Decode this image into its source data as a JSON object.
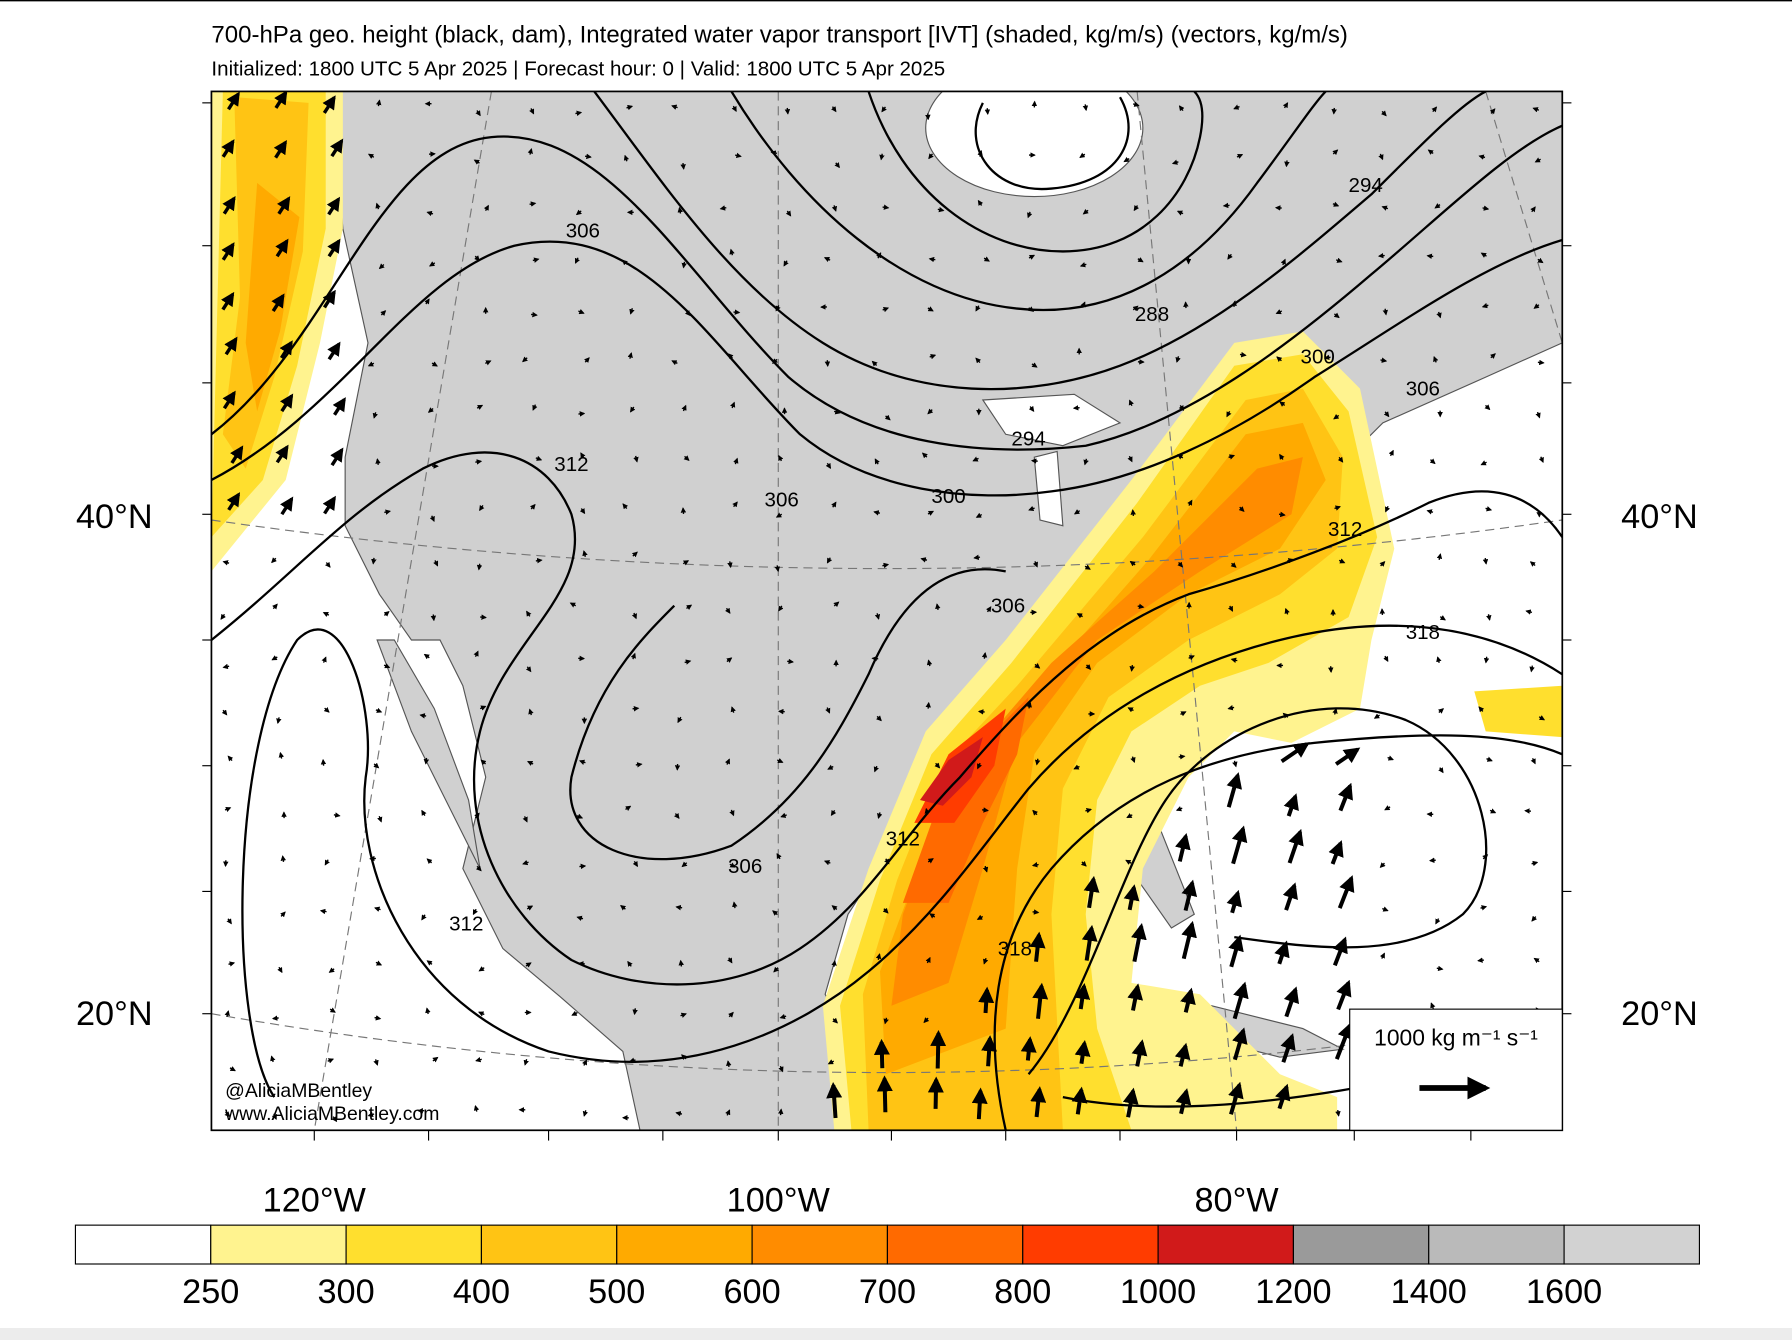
{
  "header": {
    "title": "700-hPa geo. height (black, dam), Integrated water vapor transport [IVT] (shaded, kg/m/s) (vectors, kg/m/s)",
    "subtitle": "Initialized: 1800 UTC 5 Apr 2025 | Forecast hour: 0 | Valid: 1800 UTC 5 Apr 2025"
  },
  "map": {
    "lat_labels": [
      "40°N",
      "20°N"
    ],
    "lon_labels": [
      "120°W",
      "100°W",
      "80°W"
    ],
    "contour_labels": [
      306,
      294,
      288,
      300,
      306,
      312,
      294,
      306,
      300,
      312,
      306,
      318,
      312,
      306,
      312,
      318
    ],
    "reference_vector": "1000 kg m⁻¹ s⁻¹",
    "credits": [
      "@AliciaMBentley",
      "www.AliciaMBentley.com"
    ]
  },
  "colorbar": {
    "colors": [
      "#ffffff",
      "#fff38f",
      "#ffdf2e",
      "#ffc414",
      "#ffaa00",
      "#ff8c00",
      "#ff6a00",
      "#ff3c00",
      "#d11a1a",
      "#9a9a9a",
      "#bababa",
      "#d2d2d2"
    ],
    "labels": [
      250,
      300,
      400,
      500,
      600,
      700,
      800,
      1000,
      1200,
      1400,
      1600
    ]
  }
}
